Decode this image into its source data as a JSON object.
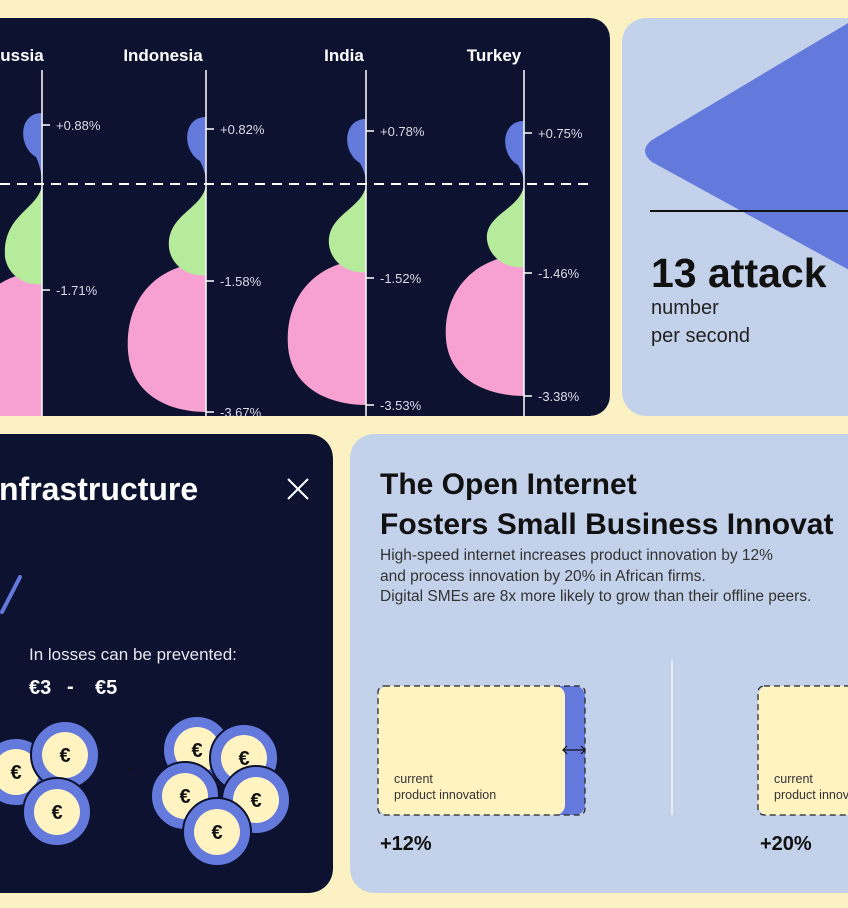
{
  "growth_card": {
    "countries": [
      {
        "name": "ussia",
        "top": "+0.88%",
        "mid": "-1.71%"
      },
      {
        "name": "Indonesia",
        "top": "+0.82%",
        "mid": "-1.58%",
        "bottom": "-3.67%"
      },
      {
        "name": "India",
        "top": "+0.78%",
        "mid": "-1.52%",
        "bottom": "-3.53%"
      },
      {
        "name": "Turkey",
        "top": "+0.75%",
        "mid": "-1.46%",
        "bottom": "-3.38%"
      }
    ]
  },
  "attacks_card": {
    "headline": "13 attack",
    "caption": [
      "number",
      "per second"
    ]
  },
  "infrastructure_card": {
    "title": "nfrastructure",
    "subtitle": "In losses can be prevented:",
    "range_low": "€3",
    "range_sep": "-",
    "range_high": "€5",
    "coin_symbol": "€",
    "coin_sep": "-"
  },
  "internet_card": {
    "title": [
      "The Open Internet",
      "Fosters Small Business Innovat"
    ],
    "body": [
      "High-speed internet increases product innovation by 12%",
      "and process innovation by 20% in African firms.",
      "Digital SMEs are 8x more likely to grow than their offline peers."
    ],
    "items": [
      {
        "label": [
          "current",
          "product innovation"
        ],
        "value": "+12%"
      },
      {
        "label": [
          "current",
          "product innov"
        ],
        "value": "+20%"
      }
    ]
  }
}
